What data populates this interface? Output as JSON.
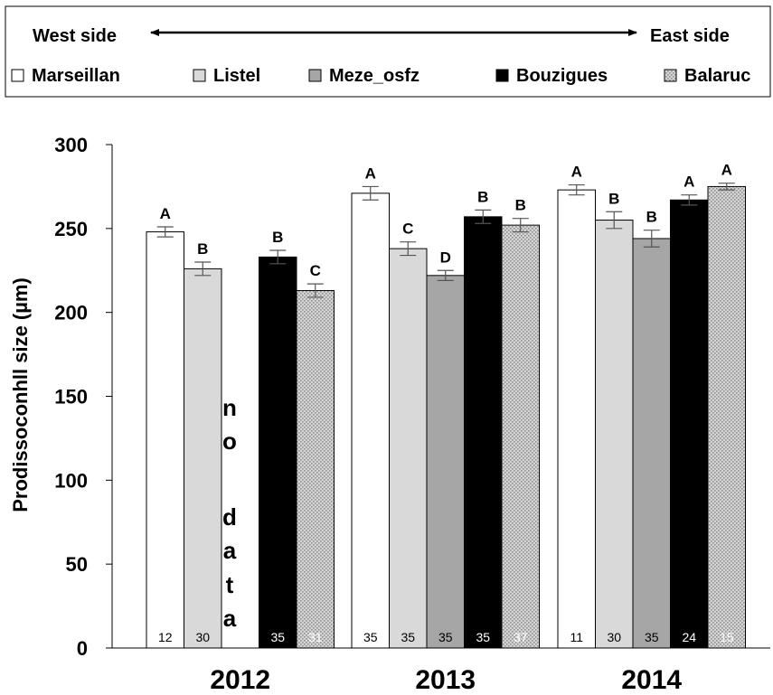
{
  "legend": {
    "west_label": "West side",
    "east_label": "East side",
    "sites": [
      "Marseillan",
      "Listel",
      "Meze_osfz",
      "Bouzigues",
      "Balaruc"
    ]
  },
  "colors": {
    "Marseillan": "#ffffff",
    "Listel": "#d9d9d9",
    "Meze_osfz": "#a6a6a6",
    "Bouzigues": "#000000",
    "Balaruc": "dotted-gray"
  },
  "chart_data": {
    "type": "bar",
    "ylabel": "Prodissoconhll size (µm)",
    "xlabel": "",
    "ylim": [
      0,
      300
    ],
    "yticks": [
      0,
      50,
      100,
      150,
      200,
      250,
      300
    ],
    "categories": [
      "2012",
      "2013",
      "2014"
    ],
    "series": [
      {
        "name": "Marseillan",
        "values": [
          248,
          271,
          273
        ],
        "errors": [
          3,
          4,
          3
        ],
        "letters": [
          "A",
          "A",
          "A"
        ],
        "n": [
          "12",
          "35",
          "11"
        ]
      },
      {
        "name": "Listel",
        "values": [
          226,
          238,
          255
        ],
        "errors": [
          4,
          4,
          5
        ],
        "letters": [
          "B",
          "C",
          "B"
        ],
        "n": [
          "30",
          "35",
          "30"
        ]
      },
      {
        "name": "Meze_osfz",
        "values": [
          null,
          222,
          244
        ],
        "errors": [
          null,
          3,
          5
        ],
        "letters": [
          null,
          "D",
          "B"
        ],
        "n": [
          null,
          "35",
          "35"
        ]
      },
      {
        "name": "Bouzigues",
        "values": [
          233,
          257,
          267
        ],
        "errors": [
          4,
          4,
          3
        ],
        "letters": [
          "B",
          "B",
          "A"
        ],
        "n": [
          "35",
          "35",
          "24"
        ]
      },
      {
        "name": "Balaruc",
        "values": [
          213,
          252,
          275
        ],
        "errors": [
          4,
          4,
          2
        ],
        "letters": [
          "C",
          "B",
          "A"
        ],
        "n": [
          "31",
          "37",
          "15"
        ]
      }
    ],
    "annotation_no_data": [
      "n",
      "o",
      "d",
      "a",
      "t",
      "a"
    ]
  }
}
